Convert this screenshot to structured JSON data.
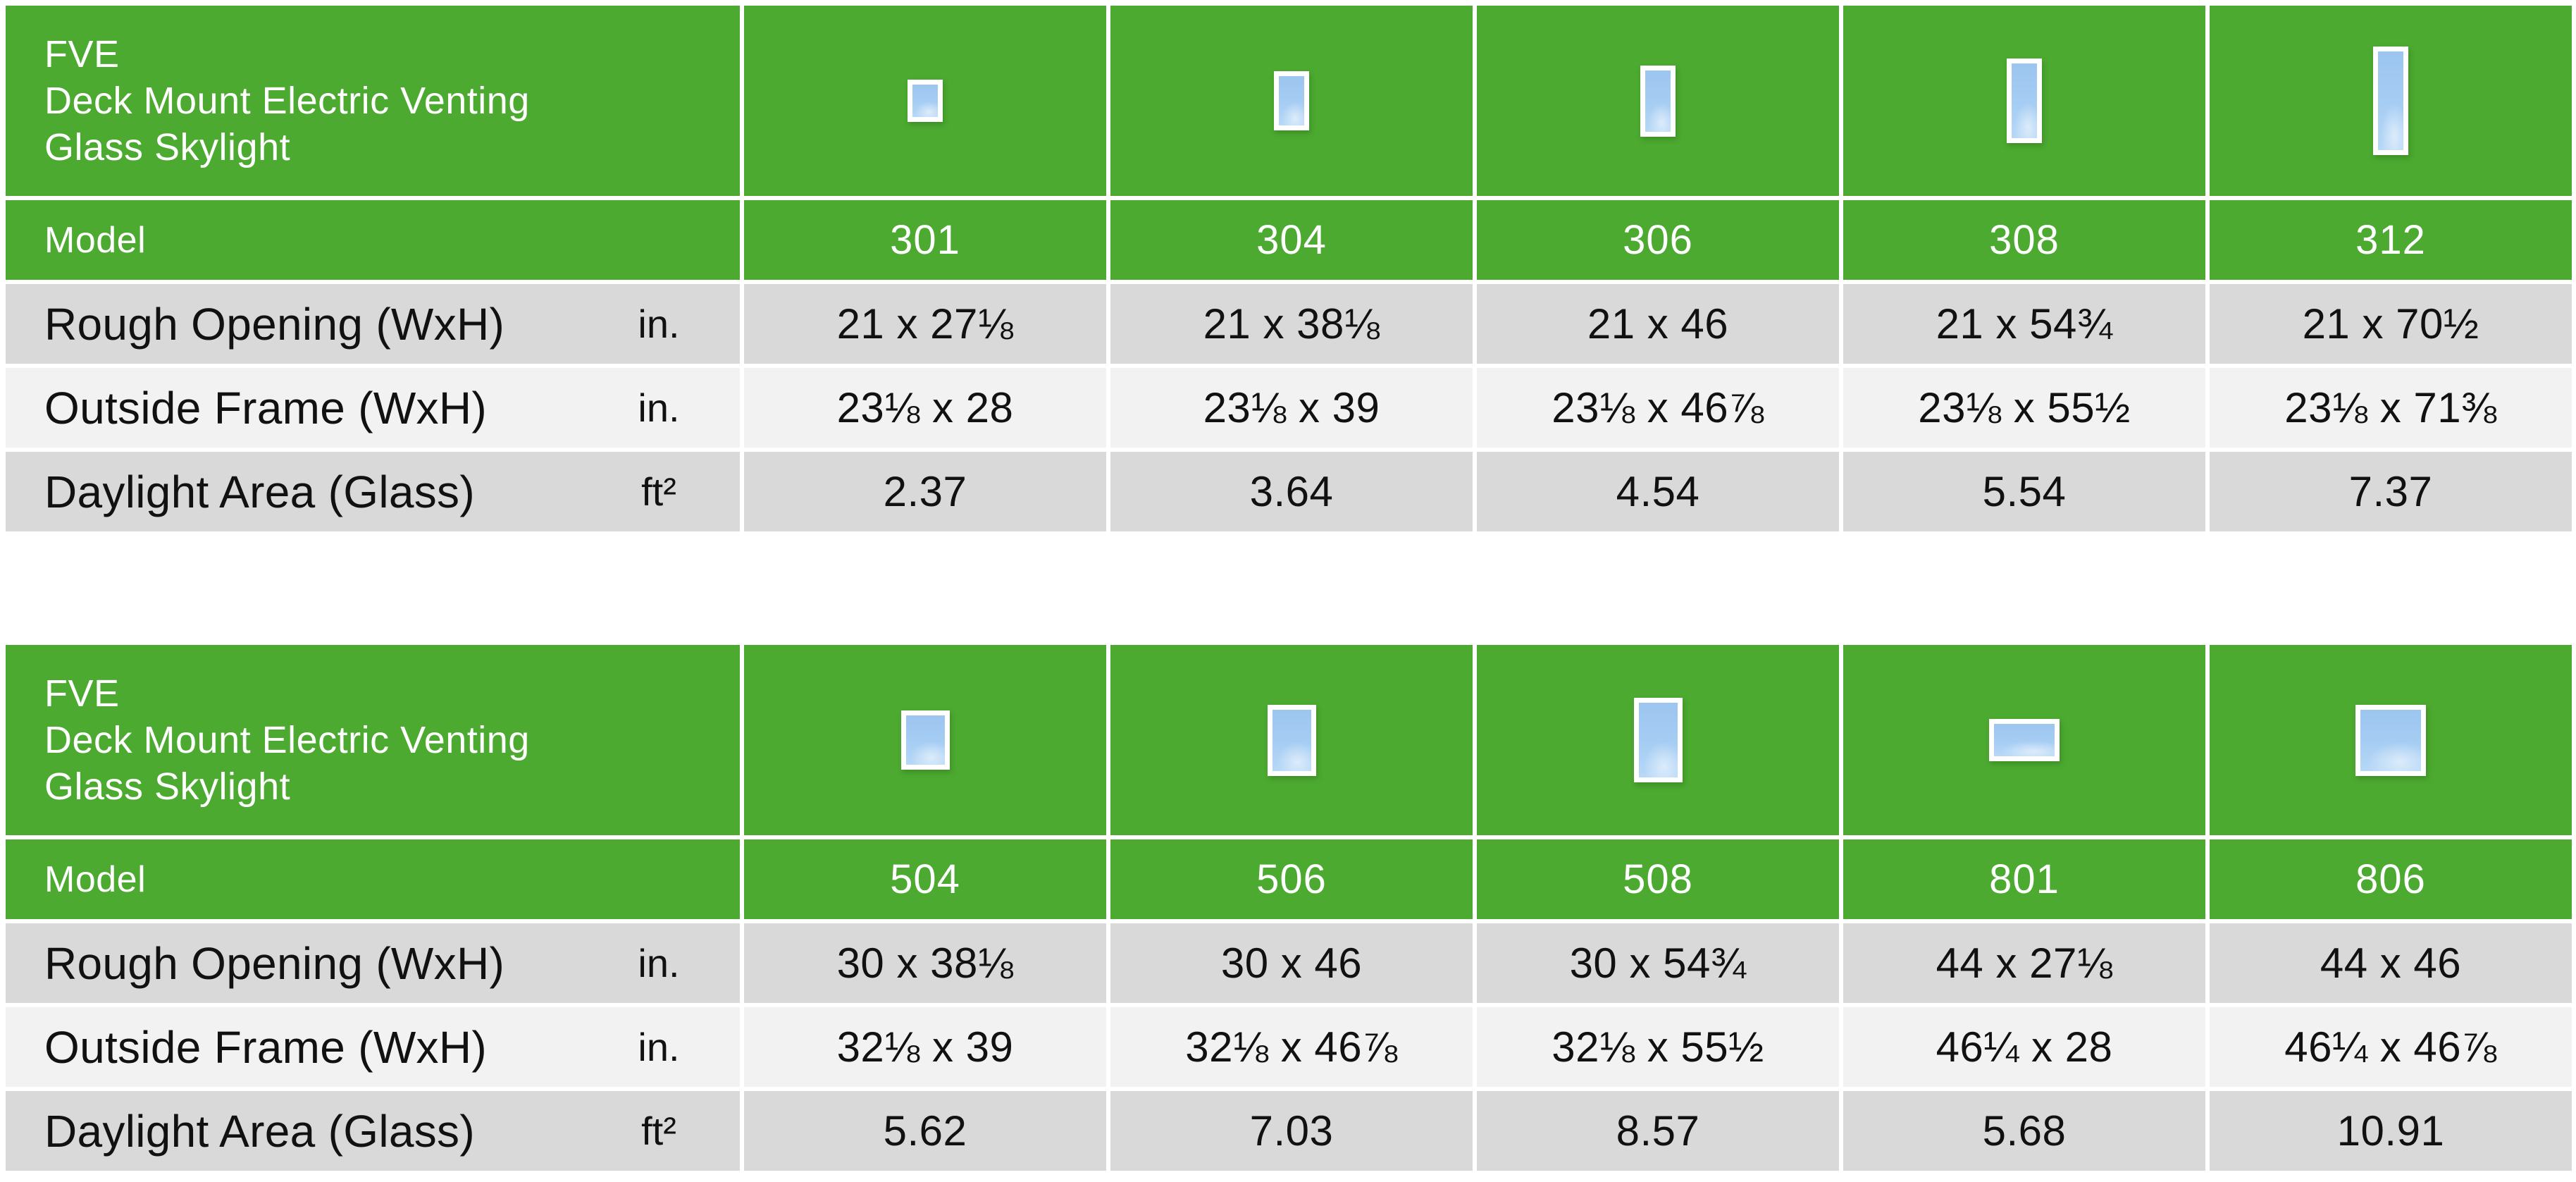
{
  "colors": {
    "brand_green": "#4caa30",
    "row_gray": "#d9d9d9",
    "row_light": "#f2f2f2",
    "text_dark": "#111111",
    "text_on_green": "#ffffff",
    "glass_blue_top": "#9cc5ef",
    "glass_blue_bottom": "#b7d8f7",
    "frame_white": "#ffffff"
  },
  "tables": [
    {
      "title_lines": [
        "FVE",
        "Deck Mount Electric Venting",
        "Glass Skylight"
      ],
      "model_label": "Model",
      "row_headers": [
        {
          "label": "Rough Opening (WxH)",
          "unit": "in."
        },
        {
          "label": "Outside Frame (WxH)",
          "unit": "in."
        },
        {
          "label": "Daylight Area (Glass)",
          "unit": "ft²"
        }
      ],
      "models": [
        {
          "id": "301",
          "icon": {
            "w": 50,
            "h": 60
          },
          "rough_opening": "21 x 27⅛",
          "outside_frame": "23⅛ x 28",
          "daylight_area": "2.37"
        },
        {
          "id": "304",
          "icon": {
            "w": 50,
            "h": 84
          },
          "rough_opening": "21 x 38⅛",
          "outside_frame": "23⅛ x 39",
          "daylight_area": "3.64"
        },
        {
          "id": "306",
          "icon": {
            "w": 50,
            "h": 101
          },
          "rough_opening": "21 x 46",
          "outside_frame": "23⅛ x 46⅞",
          "daylight_area": "4.54"
        },
        {
          "id": "308",
          "icon": {
            "w": 50,
            "h": 120
          },
          "rough_opening": "21 x 54¾",
          "outside_frame": "23⅛ x 55½",
          "daylight_area": "5.54"
        },
        {
          "id": "312",
          "icon": {
            "w": 50,
            "h": 154
          },
          "rough_opening": "21 x 70½",
          "outside_frame": "23⅛ x 71⅜",
          "daylight_area": "7.37"
        }
      ]
    },
    {
      "title_lines": [
        "FVE",
        "Deck Mount Electric Venting",
        "Glass Skylight"
      ],
      "model_label": "Model",
      "row_headers": [
        {
          "label": "Rough Opening (WxH)",
          "unit": "in."
        },
        {
          "label": "Outside Frame (WxH)",
          "unit": "in."
        },
        {
          "label": "Daylight Area (Glass)",
          "unit": "ft²"
        }
      ],
      "models": [
        {
          "id": "504",
          "icon": {
            "w": 69,
            "h": 84
          },
          "rough_opening": "30 x 38⅛",
          "outside_frame": "32⅛ x 39",
          "daylight_area": "5.62"
        },
        {
          "id": "506",
          "icon": {
            "w": 69,
            "h": 101
          },
          "rough_opening": "30 x 46",
          "outside_frame": "32⅛ x 46⅞",
          "daylight_area": "7.03"
        },
        {
          "id": "508",
          "icon": {
            "w": 69,
            "h": 120
          },
          "rough_opening": "30 x 54¾",
          "outside_frame": "32⅛ x 55½",
          "daylight_area": "8.57"
        },
        {
          "id": "801",
          "icon": {
            "w": 100,
            "h": 60
          },
          "rough_opening": "44 x 27⅛",
          "outside_frame": "46¼ x 28",
          "daylight_area": "5.68"
        },
        {
          "id": "806",
          "icon": {
            "w": 100,
            "h": 101
          },
          "rough_opening": "44 x 46",
          "outside_frame": "46¼ x 46⅞",
          "daylight_area": "10.91"
        }
      ]
    }
  ]
}
